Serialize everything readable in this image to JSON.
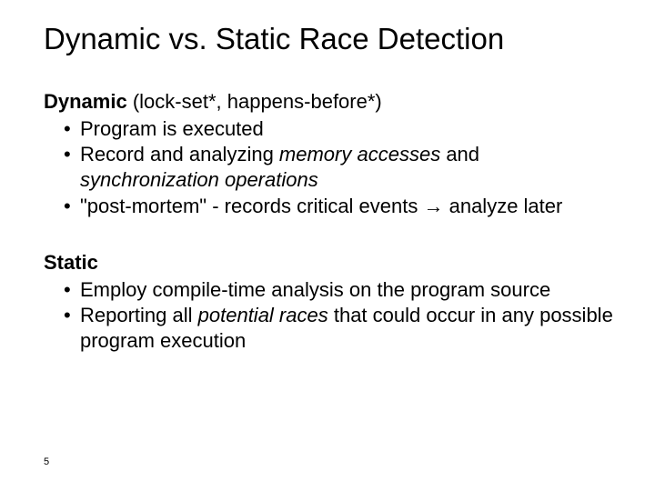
{
  "title": "Dynamic vs. Static Race Detection",
  "dynamic": {
    "heading": "Dynamic",
    "tail": "   (lock-set*, happens-before*)",
    "b1": "Program is executed",
    "b2a": "Record and analyzing  ",
    "b2i": "memory accesses",
    "b2b": " and ",
    "b2i2": "synchronization operations",
    "b3": "\"post-mortem\" - records critical events → analyze later"
  },
  "stat": {
    "heading": "Static",
    "b1": "Employ compile-time analysis on the program source",
    "b2a": "Reporting all ",
    "b2i": "potential races",
    "b2b": " that could occur in any possible program execution"
  },
  "page": "5",
  "colors": {
    "bg": "#ffffff",
    "text": "#000000"
  },
  "fontsize": {
    "title": 33,
    "body": 22,
    "pagenum": 11
  }
}
